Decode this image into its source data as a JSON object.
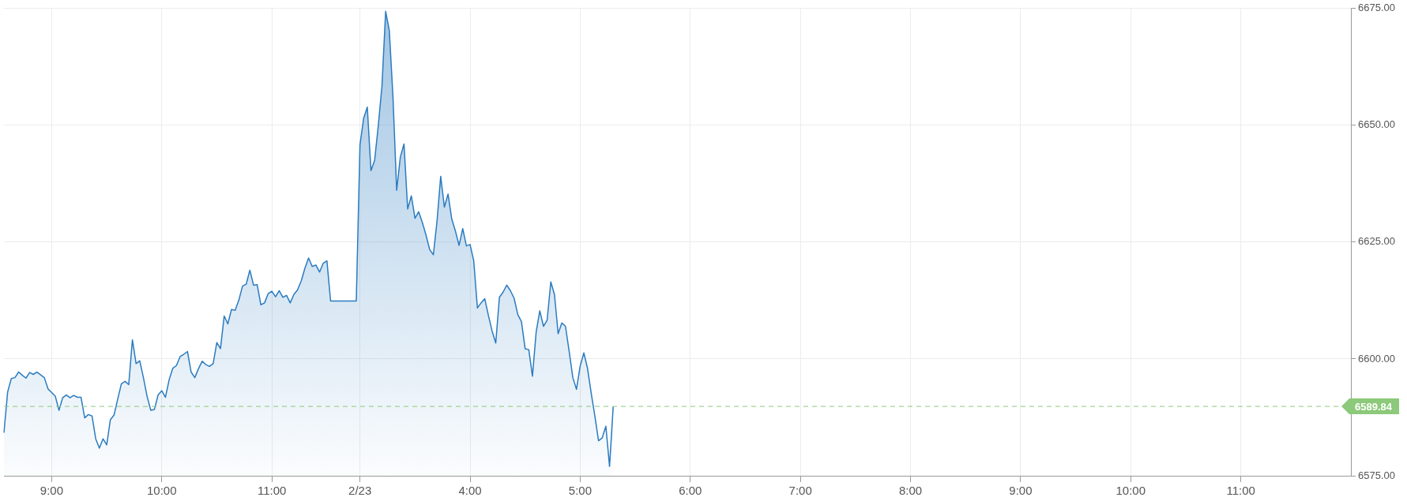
{
  "chart_data": {
    "type": "area",
    "color": "#2a7bc0",
    "marker": "none",
    "grid": true,
    "categories": [
      null,
      null,
      null,
      null,
      null,
      null,
      null,
      null,
      null,
      null,
      null,
      null,
      null,
      "9:00",
      null,
      null,
      null,
      null,
      null,
      null,
      null,
      null,
      null,
      null,
      null,
      null,
      null,
      null,
      null,
      null,
      null,
      null,
      null,
      null,
      null,
      null,
      null,
      null,
      null,
      null,
      null,
      null,
      null,
      "10:00",
      null,
      null,
      null,
      null,
      null,
      null,
      null,
      null,
      null,
      null,
      null,
      null,
      null,
      null,
      null,
      null,
      null,
      null,
      null,
      null,
      null,
      null,
      null,
      null,
      null,
      null,
      null,
      null,
      null,
      "11:00",
      null,
      null,
      null,
      null,
      null,
      null,
      null,
      null,
      null,
      null,
      null,
      null,
      null,
      null,
      null,
      null,
      null,
      null,
      null,
      null,
      null,
      null,
      null,
      "2/23",
      null,
      null,
      null,
      null,
      null,
      null,
      null,
      null,
      null,
      null,
      null,
      null,
      null,
      null,
      null,
      null,
      null,
      null,
      null,
      null,
      null,
      null,
      null,
      null,
      null,
      null,
      null,
      null,
      null,
      "4:00",
      null,
      null,
      null,
      null,
      null,
      null,
      null,
      null,
      null,
      null,
      null,
      null,
      null,
      null,
      null,
      null,
      null,
      null,
      null,
      null,
      null,
      null,
      null,
      null,
      null,
      null,
      null,
      null,
      null,
      "5:00",
      null,
      null,
      null,
      null,
      null,
      null,
      null,
      null,
      null,
      null,
      null,
      null,
      null,
      null,
      null,
      null,
      null,
      null,
      null,
      null,
      null,
      null,
      null,
      null,
      null,
      null,
      null,
      null,
      null,
      "6:00",
      null,
      null,
      null,
      null,
      null,
      null,
      null,
      null,
      null,
      null,
      null,
      null,
      null,
      null,
      null,
      null,
      null,
      null,
      null,
      null,
      null,
      null,
      null,
      null,
      null,
      null,
      null,
      null,
      null,
      "7:00",
      null,
      null,
      null,
      null,
      null,
      null,
      null,
      null,
      null,
      null,
      null,
      null,
      null,
      null,
      null,
      null,
      null,
      null,
      null,
      null,
      null,
      null,
      null,
      null,
      null,
      null,
      null,
      null,
      null,
      "8:00",
      null,
      null,
      null,
      null,
      null,
      null,
      null,
      null,
      null,
      null,
      null,
      null,
      null,
      null,
      null,
      null,
      null,
      null,
      null,
      null,
      null,
      null,
      null,
      null,
      null,
      null,
      null,
      null,
      null,
      "9:00",
      null,
      null,
      null,
      null,
      null,
      null,
      null,
      null,
      null,
      null,
      null,
      null,
      null,
      null,
      null,
      null,
      null,
      null,
      null,
      null,
      null,
      null,
      null,
      null,
      null,
      null,
      null,
      null,
      null,
      "10:00",
      null,
      null,
      null,
      null,
      null,
      null,
      null,
      null,
      null,
      null,
      null,
      null,
      null,
      null,
      null,
      null,
      null,
      null,
      null,
      null,
      null,
      null,
      null,
      null,
      null,
      null,
      null,
      null,
      null,
      "11:00",
      null,
      null,
      null,
      null,
      null,
      null,
      null,
      null,
      null,
      null,
      null,
      null,
      null,
      null,
      null,
      null,
      null,
      null,
      null,
      null,
      null,
      null,
      null,
      null,
      null,
      null,
      null,
      null,
      null,
      null
    ],
    "values": [
      6584.2,
      6592.9,
      6595.8,
      6596.0,
      6597.2,
      6596.5,
      6595.9,
      6597.1,
      6596.7,
      6597.2,
      6596.6,
      6596.0,
      6593.6,
      6592.8,
      6592.0,
      6589.0,
      6591.7,
      6592.3,
      6591.7,
      6592.2,
      6591.8,
      6591.8,
      6587.4,
      6588.1,
      6587.8,
      6582.9,
      6580.9,
      6582.9,
      6581.6,
      6587.0,
      6588.0,
      6591.4,
      6594.7,
      6595.2,
      6594.5,
      6604.1,
      6599.0,
      6599.6,
      6596.0,
      6592.0,
      6589.0,
      6589.2,
      6592.3,
      6593.2,
      6591.8,
      6595.5,
      6598.0,
      6598.6,
      6600.5,
      6601.0,
      6601.6,
      6597.2,
      6596.0,
      6597.9,
      6599.5,
      6598.8,
      6598.4,
      6599.0,
      6603.5,
      6602.2,
      6609.2,
      6607.5,
      6610.6,
      6610.4,
      6612.6,
      6615.6,
      6616.0,
      6619.0,
      6615.8,
      6615.9,
      6611.6,
      6612.0,
      6614.0,
      6614.5,
      6613.3,
      6614.6,
      6613.2,
      6613.6,
      6612.0,
      6613.8,
      6614.8,
      6616.7,
      6619.4,
      6621.6,
      6619.8,
      6620.1,
      6618.6,
      6620.5,
      6621.0,
      6612.4,
      6612.4,
      6612.4,
      6612.4,
      6612.4,
      6612.4,
      6612.4,
      6612.4,
      6645.8,
      6651.5,
      6653.9,
      6640.3,
      6642.5,
      6650.0,
      6658.5,
      6674.4,
      6670.3,
      6656.0,
      6636.1,
      6643.2,
      6646.0,
      6632.1,
      6634.9,
      6630.1,
      6631.5,
      6629.2,
      6626.5,
      6623.4,
      6622.3,
      6629.5,
      6639.1,
      6632.5,
      6635.3,
      6630.0,
      6627.4,
      6624.3,
      6627.9,
      6624.2,
      6624.5,
      6621.0,
      6610.9,
      6612.0,
      6612.9,
      6609.3,
      6606.0,
      6603.4,
      6613.2,
      6614.3,
      6615.8,
      6614.6,
      6613.0,
      6609.5,
      6608.0,
      6602.2,
      6602.0,
      6596.3,
      6605.7,
      6610.3,
      6607.0,
      6608.3,
      6616.5,
      6613.8,
      6605.4,
      6607.7,
      6607.0,
      6601.6,
      6596.0,
      6593.5,
      6598.5,
      6601.3,
      6598.0,
      6592.7,
      6587.8,
      6582.5,
      6583.1,
      6585.6,
      6577.0,
      6589.8,
      null,
      null,
      null,
      null,
      null,
      null,
      null,
      null,
      null,
      null,
      null,
      null,
      null,
      null,
      null,
      null,
      null,
      null,
      null,
      null,
      null,
      null,
      null,
      null,
      null,
      null,
      null,
      null,
      null,
      null,
      null,
      null,
      null,
      null,
      null,
      null,
      null,
      null,
      null,
      null,
      null,
      null,
      null,
      null,
      null,
      null,
      null,
      null,
      null,
      null,
      null,
      null,
      null,
      null,
      null,
      null,
      null,
      null,
      null,
      null,
      null,
      null,
      null,
      null,
      null,
      null,
      null,
      null,
      null,
      null,
      null,
      null,
      null,
      null,
      null,
      null,
      null,
      null,
      null,
      null,
      null,
      null,
      null,
      null,
      null,
      null,
      null,
      null,
      null,
      null,
      null,
      null,
      null,
      null,
      null,
      null,
      null,
      null,
      null,
      null,
      null,
      null,
      null,
      null,
      null,
      null,
      null,
      null,
      null,
      null,
      null,
      null,
      null,
      null,
      null,
      null,
      null,
      null,
      null,
      null,
      null,
      null,
      null,
      null,
      null,
      null,
      null,
      null,
      null,
      null,
      null,
      null,
      null,
      null,
      null,
      null,
      null,
      null,
      null,
      null,
      null,
      null,
      null,
      null,
      null,
      null,
      null,
      null,
      null,
      null,
      null,
      null,
      null,
      null,
      null,
      null,
      null,
      null,
      null,
      null,
      null,
      null,
      null,
      null,
      null,
      null,
      null,
      null,
      null,
      null,
      null,
      null,
      null,
      null,
      null,
      null,
      null,
      null,
      null,
      null,
      null,
      null,
      null,
      null,
      null,
      null,
      null,
      null,
      null,
      null,
      null,
      null,
      null,
      null,
      null,
      null,
      null,
      null,
      null,
      null,
      null
    ],
    "ylim": [
      6575,
      6675
    ],
    "yticks": [
      {
        "value": 6575,
        "label": "6575.00"
      },
      {
        "value": 6600,
        "label": "6600.00"
      },
      {
        "value": 6625,
        "label": "6625.00"
      },
      {
        "value": 6650,
        "label": "6650.00"
      },
      {
        "value": 6675,
        "label": "6675.00"
      }
    ],
    "ref_lines": [
      {
        "axis": "y",
        "value": 6589.84,
        "label": "6589.84",
        "color": "#8cc97a",
        "line_style": "dashed"
      }
    ]
  }
}
